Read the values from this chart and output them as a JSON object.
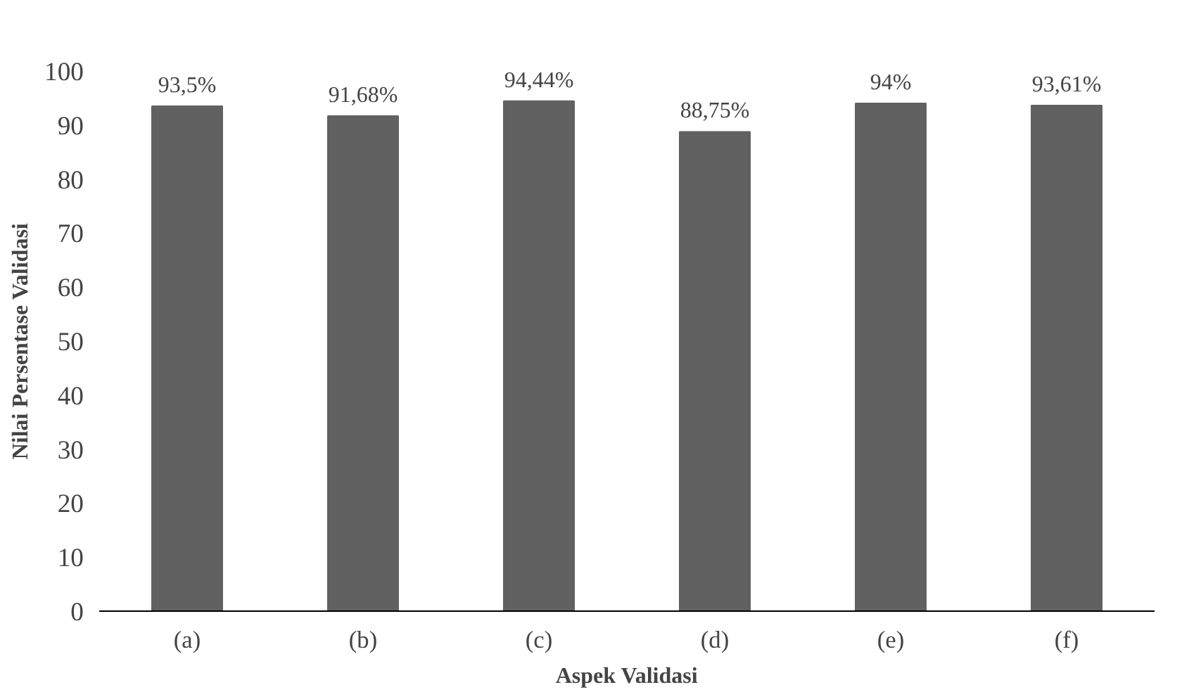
{
  "chart_data": {
    "type": "bar",
    "xlabel": "Aspek Validasi",
    "ylabel": "Nilai Persentase Validasi",
    "categories": [
      "(a)",
      "(b)",
      "(c)",
      "(d)",
      "(e)",
      "(f)"
    ],
    "values": [
      93.5,
      91.68,
      94.44,
      88.75,
      94,
      93.61
    ],
    "value_labels": [
      "93,5%",
      "91,68%",
      "94,44%",
      "88,75%",
      "94%",
      "93,61%"
    ],
    "color": "#616161",
    "ylim": [
      0,
      100
    ],
    "yticks": [
      0,
      10,
      20,
      30,
      40,
      50,
      60,
      70,
      80,
      90,
      100
    ],
    "grid": false
  }
}
